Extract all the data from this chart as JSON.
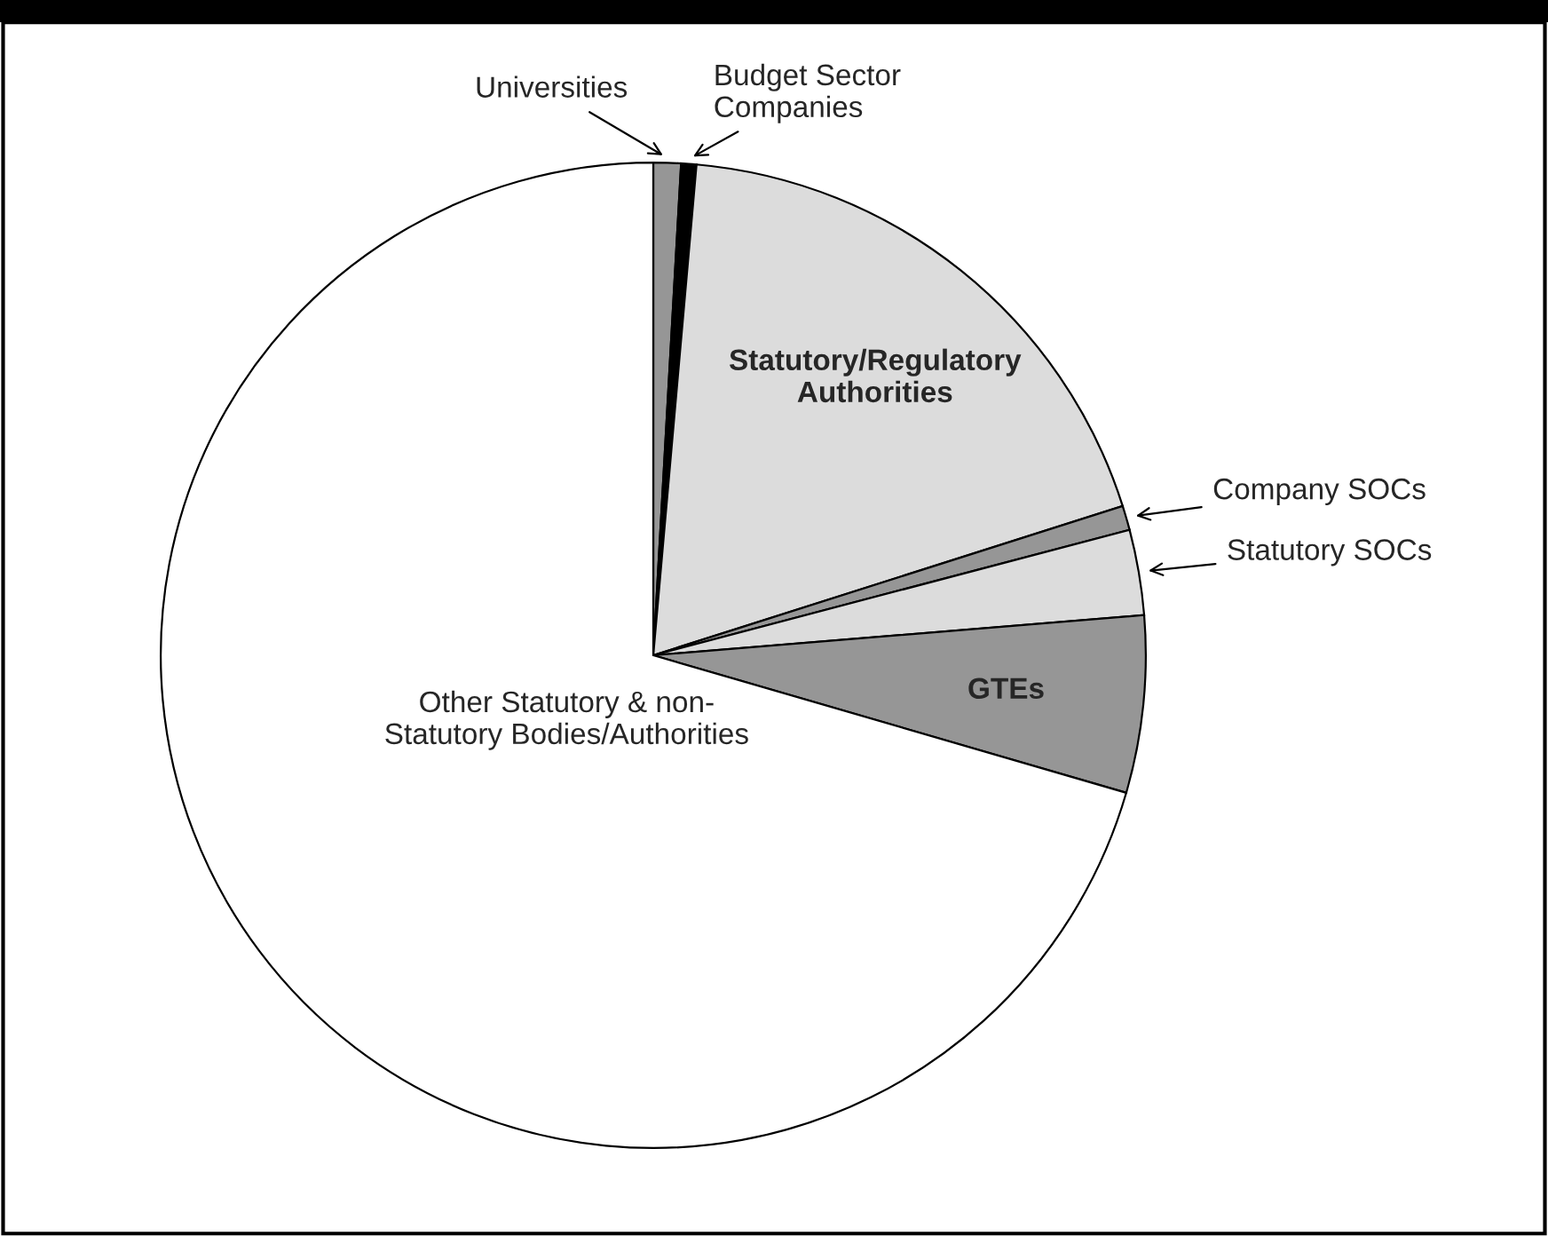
{
  "chart_data": {
    "type": "pie",
    "categories": [
      "Universities",
      "Budget Sector\nCompanies",
      "Statutory/Regulatory\nAuthorities",
      "Company SOCs",
      "Statutory SOCs",
      "GTEs",
      "Other Statutory & non-\nStatutory Bodies/Authorities"
    ],
    "values": [
      0.9,
      0.5,
      18.7,
      0.8,
      2.8,
      5.8,
      70.5
    ],
    "colors": [
      "#969696",
      "#000000",
      "#dcdcdc",
      "#969696",
      "#dcdcdc",
      "#969696",
      "#ffffff"
    ]
  }
}
